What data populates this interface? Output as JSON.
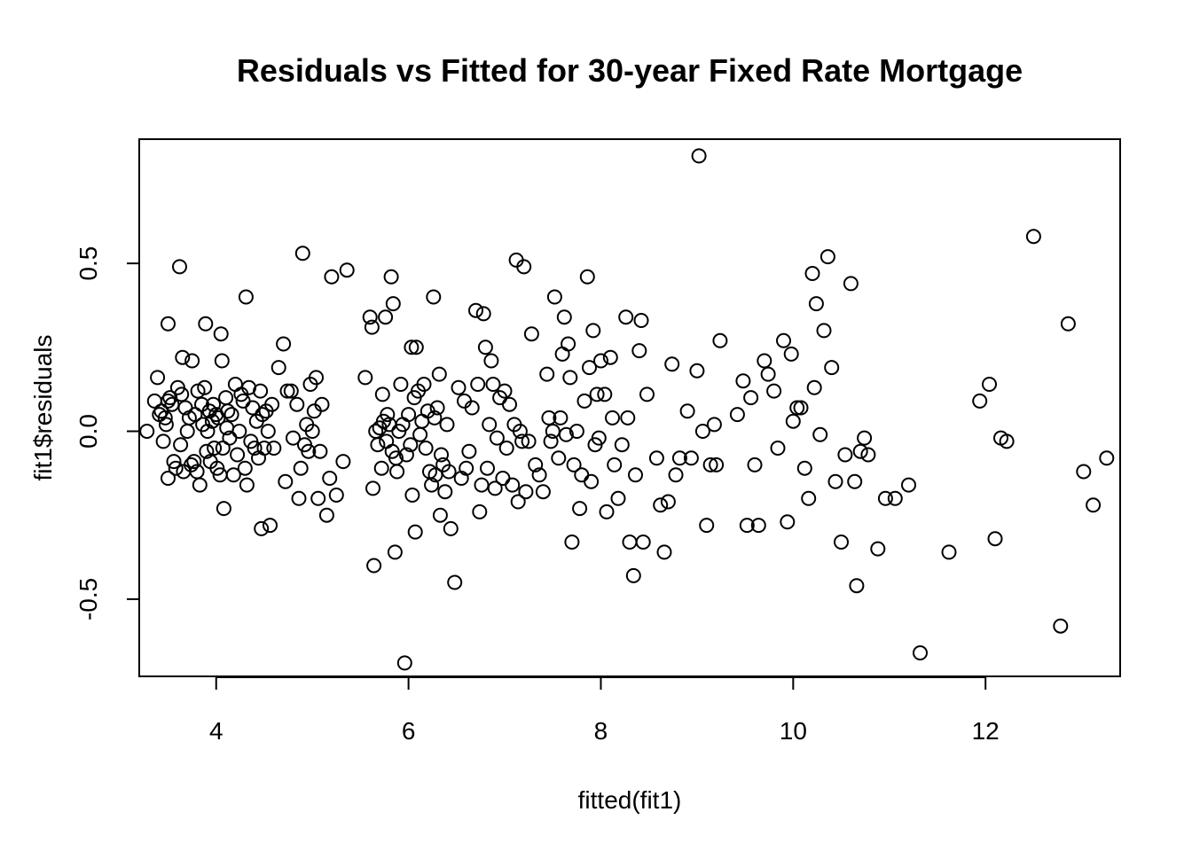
{
  "chart_data": {
    "type": "scatter",
    "title": "Residuals vs Fitted for 30-year Fixed Rate Mortgage",
    "xlabel": "fitted(fit1)",
    "ylabel": "fit1$residuals",
    "xlim": [
      3.2,
      13.4
    ],
    "ylim": [
      -0.73,
      0.87
    ],
    "xticks": [
      4,
      6,
      8,
      10,
      12
    ],
    "xtick_labels": [
      "4",
      "6",
      "8",
      "10",
      "12"
    ],
    "yticks": [
      -0.5,
      0.0,
      0.5
    ],
    "ytick_labels": [
      "-0.5",
      "0.0",
      "0.5"
    ],
    "marker": "open-circle",
    "points": [
      [
        3.28,
        0.0
      ],
      [
        3.36,
        0.09
      ],
      [
        3.39,
        0.16
      ],
      [
        3.41,
        0.05
      ],
      [
        3.43,
        0.06
      ],
      [
        3.45,
        -0.03
      ],
      [
        3.47,
        0.04
      ],
      [
        3.48,
        0.02
      ],
      [
        3.5,
        0.09
      ],
      [
        3.5,
        -0.14
      ],
      [
        3.5,
        0.32
      ],
      [
        3.52,
        0.1
      ],
      [
        3.54,
        0.08
      ],
      [
        3.56,
        -0.09
      ],
      [
        3.58,
        -0.11
      ],
      [
        3.6,
        0.13
      ],
      [
        3.62,
        0.49
      ],
      [
        3.63,
        -0.04
      ],
      [
        3.64,
        0.11
      ],
      [
        3.65,
        0.22
      ],
      [
        3.66,
        -0.12
      ],
      [
        3.68,
        0.07
      ],
      [
        3.7,
        0.0
      ],
      [
        3.72,
        0.04
      ],
      [
        3.74,
        -0.1
      ],
      [
        3.75,
        0.21
      ],
      [
        3.77,
        -0.09
      ],
      [
        3.78,
        0.05
      ],
      [
        3.8,
        -0.12
      ],
      [
        3.81,
        0.12
      ],
      [
        3.83,
        -0.16
      ],
      [
        3.85,
        0.08
      ],
      [
        3.86,
        0.02
      ],
      [
        3.88,
        0.13
      ],
      [
        3.89,
        0.32
      ],
      [
        3.9,
        -0.06
      ],
      [
        3.91,
        0.0
      ],
      [
        3.93,
        0.06
      ],
      [
        3.94,
        -0.09
      ],
      [
        3.96,
        0.03
      ],
      [
        3.97,
        0.08
      ],
      [
        3.98,
        -0.05
      ],
      [
        4.0,
        0.05
      ],
      [
        4.01,
        -0.11
      ],
      [
        4.02,
        0.04
      ],
      [
        4.04,
        -0.13
      ],
      [
        4.05,
        0.29
      ],
      [
        4.06,
        0.21
      ],
      [
        4.07,
        -0.05
      ],
      [
        4.08,
        -0.23
      ],
      [
        4.1,
        0.1
      ],
      [
        4.11,
        0.01
      ],
      [
        4.12,
        0.06
      ],
      [
        4.14,
        -0.02
      ],
      [
        4.16,
        0.05
      ],
      [
        4.18,
        -0.13
      ],
      [
        4.2,
        0.14
      ],
      [
        4.22,
        -0.07
      ],
      [
        4.24,
        0.0
      ],
      [
        4.26,
        0.11
      ],
      [
        4.28,
        0.09
      ],
      [
        4.3,
        -0.11
      ],
      [
        4.31,
        0.4
      ],
      [
        4.32,
        -0.16
      ],
      [
        4.34,
        0.13
      ],
      [
        4.36,
        -0.03
      ],
      [
        4.38,
        0.07
      ],
      [
        4.4,
        -0.05
      ],
      [
        4.42,
        0.03
      ],
      [
        4.44,
        -0.08
      ],
      [
        4.46,
        0.12
      ],
      [
        4.47,
        -0.29
      ],
      [
        4.48,
        0.05
      ],
      [
        4.5,
        -0.05
      ],
      [
        4.52,
        0.06
      ],
      [
        4.54,
        0.0
      ],
      [
        4.56,
        -0.28
      ],
      [
        4.58,
        0.08
      ],
      [
        4.6,
        -0.05
      ],
      [
        4.65,
        0.19
      ],
      [
        4.7,
        0.26
      ],
      [
        4.72,
        -0.15
      ],
      [
        4.74,
        0.12
      ],
      [
        4.78,
        0.12
      ],
      [
        4.8,
        -0.02
      ],
      [
        4.84,
        0.08
      ],
      [
        4.86,
        -0.2
      ],
      [
        4.88,
        -0.11
      ],
      [
        4.9,
        0.53
      ],
      [
        4.92,
        -0.04
      ],
      [
        4.94,
        0.02
      ],
      [
        4.96,
        -0.06
      ],
      [
        4.98,
        0.14
      ],
      [
        5.0,
        0.0
      ],
      [
        5.02,
        0.06
      ],
      [
        5.04,
        0.16
      ],
      [
        5.06,
        -0.2
      ],
      [
        5.08,
        -0.06
      ],
      [
        5.1,
        0.08
      ],
      [
        5.15,
        -0.25
      ],
      [
        5.18,
        -0.14
      ],
      [
        5.2,
        0.46
      ],
      [
        5.25,
        -0.19
      ],
      [
        5.32,
        -0.09
      ],
      [
        5.36,
        0.48
      ],
      [
        5.55,
        0.16
      ],
      [
        5.6,
        0.34
      ],
      [
        5.62,
        0.31
      ],
      [
        5.63,
        -0.17
      ],
      [
        5.64,
        -0.4
      ],
      [
        5.66,
        0.0
      ],
      [
        5.68,
        -0.04
      ],
      [
        5.7,
        0.01
      ],
      [
        5.72,
        -0.11
      ],
      [
        5.73,
        0.11
      ],
      [
        5.74,
        0.03
      ],
      [
        5.76,
        0.34
      ],
      [
        5.77,
        -0.03
      ],
      [
        5.78,
        0.05
      ],
      [
        5.8,
        0.02
      ],
      [
        5.82,
        0.46
      ],
      [
        5.83,
        -0.06
      ],
      [
        5.84,
        0.38
      ],
      [
        5.86,
        -0.36
      ],
      [
        5.87,
        -0.08
      ],
      [
        5.88,
        -0.12
      ],
      [
        5.9,
        0.0
      ],
      [
        5.92,
        0.14
      ],
      [
        5.94,
        0.02
      ],
      [
        5.96,
        -0.69
      ],
      [
        5.98,
        -0.07
      ],
      [
        6.0,
        0.05
      ],
      [
        6.02,
        -0.04
      ],
      [
        6.03,
        0.25
      ],
      [
        6.04,
        -0.19
      ],
      [
        6.06,
        0.1
      ],
      [
        6.07,
        -0.3
      ],
      [
        6.08,
        0.25
      ],
      [
        6.1,
        0.12
      ],
      [
        6.12,
        -0.01
      ],
      [
        6.14,
        0.03
      ],
      [
        6.16,
        0.14
      ],
      [
        6.18,
        -0.05
      ],
      [
        6.2,
        0.06
      ],
      [
        6.22,
        -0.12
      ],
      [
        6.24,
        -0.16
      ],
      [
        6.26,
        0.4
      ],
      [
        6.27,
        0.04
      ],
      [
        6.28,
        -0.13
      ],
      [
        6.3,
        0.07
      ],
      [
        6.32,
        0.17
      ],
      [
        6.33,
        -0.25
      ],
      [
        6.34,
        -0.07
      ],
      [
        6.36,
        -0.1
      ],
      [
        6.38,
        -0.18
      ],
      [
        6.4,
        0.02
      ],
      [
        6.42,
        -0.12
      ],
      [
        6.44,
        -0.29
      ],
      [
        6.48,
        -0.45
      ],
      [
        6.52,
        0.13
      ],
      [
        6.55,
        -0.14
      ],
      [
        6.58,
        0.09
      ],
      [
        6.6,
        -0.11
      ],
      [
        6.63,
        -0.06
      ],
      [
        6.66,
        0.07
      ],
      [
        6.7,
        0.36
      ],
      [
        6.72,
        0.14
      ],
      [
        6.74,
        -0.24
      ],
      [
        6.76,
        -0.16
      ],
      [
        6.78,
        0.35
      ],
      [
        6.8,
        0.25
      ],
      [
        6.82,
        -0.11
      ],
      [
        6.84,
        0.02
      ],
      [
        6.86,
        0.21
      ],
      [
        6.88,
        0.14
      ],
      [
        6.9,
        -0.17
      ],
      [
        6.92,
        -0.02
      ],
      [
        6.95,
        0.1
      ],
      [
        6.98,
        -0.14
      ],
      [
        7.0,
        0.12
      ],
      [
        7.02,
        -0.05
      ],
      [
        7.05,
        0.08
      ],
      [
        7.08,
        -0.16
      ],
      [
        7.1,
        0.02
      ],
      [
        7.12,
        0.51
      ],
      [
        7.14,
        -0.21
      ],
      [
        7.16,
        0.0
      ],
      [
        7.18,
        -0.03
      ],
      [
        7.2,
        0.49
      ],
      [
        7.22,
        -0.18
      ],
      [
        7.25,
        -0.03
      ],
      [
        7.28,
        0.29
      ],
      [
        7.32,
        -0.1
      ],
      [
        7.36,
        -0.13
      ],
      [
        7.4,
        -0.18
      ],
      [
        7.44,
        0.17
      ],
      [
        7.46,
        0.04
      ],
      [
        7.48,
        -0.03
      ],
      [
        7.5,
        0.0
      ],
      [
        7.52,
        0.4
      ],
      [
        7.56,
        -0.08
      ],
      [
        7.58,
        0.04
      ],
      [
        7.6,
        0.23
      ],
      [
        7.62,
        0.34
      ],
      [
        7.64,
        -0.01
      ],
      [
        7.66,
        0.26
      ],
      [
        7.68,
        0.16
      ],
      [
        7.7,
        -0.33
      ],
      [
        7.72,
        -0.1
      ],
      [
        7.75,
        0.0
      ],
      [
        7.78,
        -0.23
      ],
      [
        7.8,
        -0.13
      ],
      [
        7.83,
        0.09
      ],
      [
        7.86,
        0.46
      ],
      [
        7.88,
        0.19
      ],
      [
        7.9,
        -0.15
      ],
      [
        7.92,
        0.3
      ],
      [
        7.94,
        -0.04
      ],
      [
        7.96,
        0.11
      ],
      [
        7.98,
        -0.02
      ],
      [
        8.0,
        0.21
      ],
      [
        8.04,
        0.11
      ],
      [
        8.06,
        -0.24
      ],
      [
        8.1,
        0.22
      ],
      [
        8.12,
        0.04
      ],
      [
        8.14,
        -0.1
      ],
      [
        8.18,
        -0.2
      ],
      [
        8.22,
        -0.04
      ],
      [
        8.26,
        0.34
      ],
      [
        8.28,
        0.04
      ],
      [
        8.3,
        -0.33
      ],
      [
        8.34,
        -0.43
      ],
      [
        8.36,
        -0.13
      ],
      [
        8.4,
        0.24
      ],
      [
        8.42,
        0.33
      ],
      [
        8.44,
        -0.33
      ],
      [
        8.48,
        0.11
      ],
      [
        8.58,
        -0.08
      ],
      [
        8.62,
        -0.22
      ],
      [
        8.66,
        -0.36
      ],
      [
        8.7,
        -0.21
      ],
      [
        8.74,
        0.2
      ],
      [
        8.78,
        -0.13
      ],
      [
        8.82,
        -0.08
      ],
      [
        8.9,
        0.06
      ],
      [
        8.94,
        -0.08
      ],
      [
        9.0,
        0.18
      ],
      [
        9.02,
        0.82
      ],
      [
        9.06,
        0.0
      ],
      [
        9.1,
        -0.28
      ],
      [
        9.14,
        -0.1
      ],
      [
        9.18,
        0.02
      ],
      [
        9.2,
        -0.1
      ],
      [
        9.24,
        0.27
      ],
      [
        9.42,
        0.05
      ],
      [
        9.48,
        0.15
      ],
      [
        9.52,
        -0.28
      ],
      [
        9.56,
        0.1
      ],
      [
        9.6,
        -0.1
      ],
      [
        9.64,
        -0.28
      ],
      [
        9.7,
        0.21
      ],
      [
        9.74,
        0.17
      ],
      [
        9.8,
        0.12
      ],
      [
        9.84,
        -0.05
      ],
      [
        9.9,
        0.27
      ],
      [
        9.94,
        -0.27
      ],
      [
        9.98,
        0.23
      ],
      [
        10.0,
        0.03
      ],
      [
        10.04,
        0.07
      ],
      [
        10.08,
        0.07
      ],
      [
        10.12,
        -0.11
      ],
      [
        10.16,
        -0.2
      ],
      [
        10.2,
        0.47
      ],
      [
        10.22,
        0.13
      ],
      [
        10.24,
        0.38
      ],
      [
        10.28,
        -0.01
      ],
      [
        10.32,
        0.3
      ],
      [
        10.36,
        0.52
      ],
      [
        10.4,
        0.19
      ],
      [
        10.44,
        -0.15
      ],
      [
        10.5,
        -0.33
      ],
      [
        10.54,
        -0.07
      ],
      [
        10.6,
        0.44
      ],
      [
        10.64,
        -0.15
      ],
      [
        10.66,
        -0.46
      ],
      [
        10.7,
        -0.06
      ],
      [
        10.74,
        -0.02
      ],
      [
        10.78,
        -0.07
      ],
      [
        10.88,
        -0.35
      ],
      [
        10.96,
        -0.2
      ],
      [
        11.06,
        -0.2
      ],
      [
        11.2,
        -0.16
      ],
      [
        11.32,
        -0.66
      ],
      [
        11.62,
        -0.36
      ],
      [
        11.94,
        0.09
      ],
      [
        12.04,
        0.14
      ],
      [
        12.1,
        -0.32
      ],
      [
        12.16,
        -0.02
      ],
      [
        12.22,
        -0.03
      ],
      [
        12.5,
        0.58
      ],
      [
        12.78,
        -0.58
      ],
      [
        12.86,
        0.32
      ],
      [
        13.02,
        -0.12
      ],
      [
        13.12,
        -0.22
      ],
      [
        13.26,
        -0.08
      ]
    ]
  }
}
